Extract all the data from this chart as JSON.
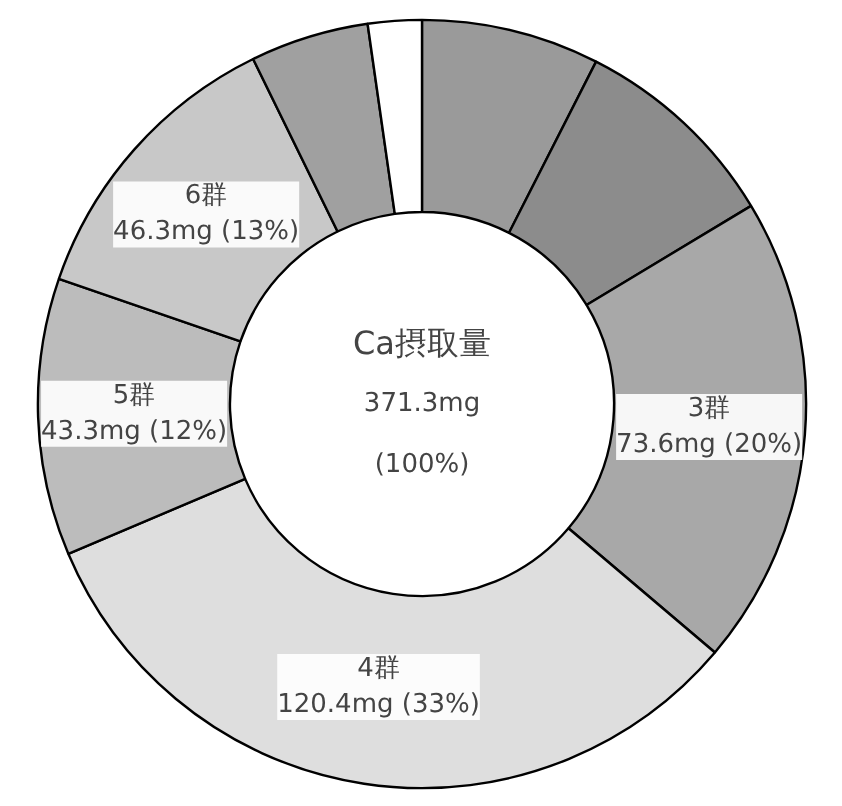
{
  "chart_data": {
    "type": "donut",
    "categories": [
      null,
      null,
      "3群",
      "4群",
      "5群",
      "6群",
      null,
      null
    ],
    "values": [
      27.8,
      33.0,
      73.6,
      120.4,
      43.3,
      46.3,
      18.5,
      8.4
    ],
    "value_labels": [
      null,
      null,
      "73.6mg (20%)",
      "120.4mg (33%)",
      "43.3mg (12%)",
      "46.3mg (13%)",
      null,
      null
    ],
    "colors": [
      "#9a9a9a",
      "#8c8c8c",
      "#a8a8a8",
      "#dedede",
      "#bcbcbc",
      "#c8c8c8",
      "#a0a0a0",
      "#ffffff"
    ],
    "annotations": [
      "Ca摂取量",
      "371.3mg",
      "(100%)"
    ]
  }
}
